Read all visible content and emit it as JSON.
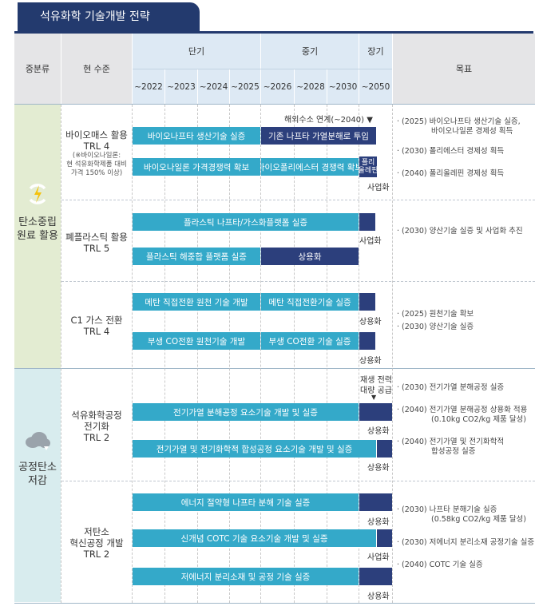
{
  "title": "석유화학 기술개발 전략",
  "header": {
    "col_category": "중분류",
    "col_level": "현 수준",
    "short": "단기",
    "mid": "중기",
    "long": "장기",
    "goal": "목표",
    "years": [
      "~2022",
      "~2023",
      "~2024",
      "~2025",
      "~2026",
      "~2028",
      "~2030",
      "~2050"
    ]
  },
  "categories": [
    {
      "label1": "탄소중립",
      "label2": "원료 활용",
      "icon": "lightning-recycle-icon"
    },
    {
      "label1": "공정탄소",
      "label2": "저감",
      "icon": "cloud-co2-icon"
    }
  ],
  "items": [
    {
      "name": "바이오매스 활용",
      "trl": "TRL 4",
      "note1": "(※바이오나일론:",
      "note2": "현 석유화학제품 대비",
      "note3": "가격 150% 이상)"
    },
    {
      "name": "폐플라스틱 활용",
      "trl": "TRL 5"
    },
    {
      "name": "C1 가스 전환",
      "trl": "TRL 4"
    },
    {
      "name1": "석유화학공정",
      "name2": "전기화",
      "trl": "TRL 2"
    },
    {
      "name1": "저탄소",
      "name2": "혁신공정 개발",
      "trl": "TRL 2"
    }
  ],
  "bars": {
    "b1": "바이오나프타 생산기술 실증",
    "b1b": "기존 나프타 가열분해로 투입",
    "b2": "바이오나일론 가격경쟁력 확보",
    "b2b": "바이오폴리에스터 경쟁력 확보",
    "b2c1": "폴리",
    "b2c2": "올레핀",
    "b3": "플라스틱 나프타/가스화플랫폼 실증",
    "b4": "플라스틱 해중합 플랫폼 실증",
    "b4b": "상용화",
    "b5": "메탄 직접전환 원천 기술 개발",
    "b5b": "메탄 직접전환기술 실증",
    "b6": "부생 CO전환 원천기술 개발",
    "b6b": "부생 CO전환 기술 실증",
    "b7": "전기가열 분해공정 요소기술 개발 및 실증",
    "b8": "전기가열 및 전기화학적 합성공정 요소기술 개발 및 실증",
    "b9": "에너지 절약형 나프타 분해 기술 실증",
    "b10": "신개념 COTC 기술 요소기술 개발 및 실증",
    "b11": "저에너지 분리소재 및 공정 기술 실증"
  },
  "labels": {
    "hydrogen": "해외수소 연계(~2040) ▼",
    "commercialize": "사업화",
    "commercial": "상용화",
    "renew1": "재생 전력",
    "renew2": "대량 공급",
    "down": "▼"
  },
  "goals": [
    "· (2025) 바이오나프타 생산기술 실증,",
    "바이오나일론 경제성 획득",
    "· (2030) 폴리에스터 경제성 획득",
    "· (2040) 폴리올레핀 경제성 획득",
    "· (2030) 양산기술 실증 및 사업화 추진",
    "· (2025) 원천기술 확보",
    "· (2030) 양산기술 실증",
    "· (2030) 전기가열 분해공정 실증",
    "· (2040) 전기가열 분해공정 상용화 적용",
    "(0.10kg CO2/kg 제품 달성)",
    "· (2040) 전기가열 및 전기화학적",
    "합성공정 실증",
    "· (2030) 나프타 분해기술 실증",
    "(0.58kg CO2/kg 제품 달성)",
    "· (2030) 저에너지 분리소재 공정기술 실증",
    "· (2040) COTC 기술 실증"
  ],
  "colors": {
    "navy": "#2c3f7c",
    "teal": "#34a9c9",
    "green_bg": "#e3ecd2",
    "blue_bg": "#d8ecee"
  }
}
